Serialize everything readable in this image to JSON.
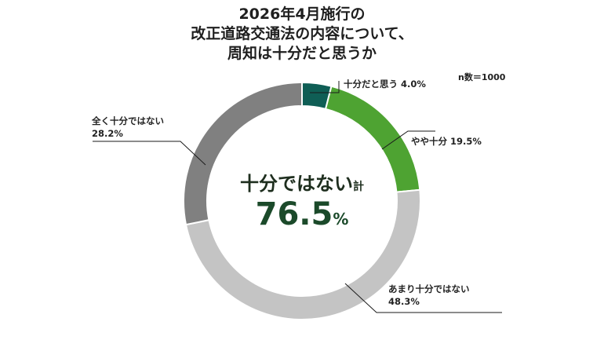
{
  "title_lines": [
    "2026年4月施行の",
    "改正道路交通法の内容について、",
    "周知は十分だと思うか"
  ],
  "sample_size": "n数＝1000",
  "center": {
    "label": "十分ではない",
    "suffix": "計",
    "value": "76.5",
    "unit": "%"
  },
  "colors": {
    "enough": "#0f5e55",
    "somewhat_enough": "#4ea332",
    "not_very": "#c4c4c4",
    "not_at_all": "#808080",
    "title": "#1f1f1f",
    "center_value": "#1b4a2a"
  },
  "chart_data": {
    "type": "pie",
    "donut": true,
    "start": "top",
    "direction": "clockwise",
    "categories": [
      "十分だと思う",
      "やや十分",
      "あまり十分ではない",
      "全く十分ではない"
    ],
    "values": [
      4.0,
      19.5,
      48.3,
      28.2
    ],
    "value_labels": [
      "4.0%",
      "19.5%",
      "48.3%",
      "28.2%"
    ],
    "colors": [
      "#0f5e55",
      "#4ea332",
      "#c4c4c4",
      "#808080"
    ]
  }
}
